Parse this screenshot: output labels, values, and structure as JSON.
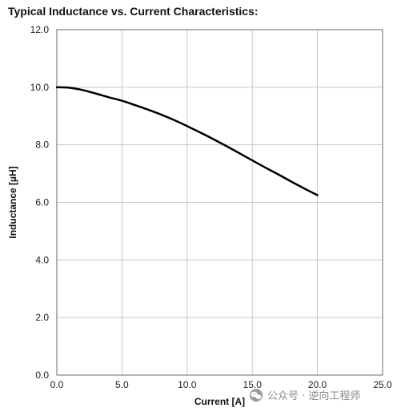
{
  "chart_data": {
    "type": "line",
    "title": "Typical Inductance vs. Current Characteristics:",
    "xlabel": "Current [A]",
    "ylabel": "Inductance [µH]",
    "xlim": [
      0,
      25
    ],
    "ylim": [
      0,
      12
    ],
    "x_ticks": [
      "0.0",
      "5.0",
      "10.0",
      "15.0",
      "20.0",
      "25.0"
    ],
    "y_ticks": [
      "0.0",
      "2.0",
      "4.0",
      "6.0",
      "8.0",
      "10.0",
      "12.0"
    ],
    "grid": true,
    "series": [
      {
        "color": "#000000",
        "x": [
          0,
          1,
          2,
          3,
          4,
          5,
          6,
          7,
          8,
          9,
          10,
          11,
          12,
          13,
          14,
          15,
          16,
          17,
          18,
          19,
          20
        ],
        "y": [
          10.0,
          9.98,
          9.9,
          9.78,
          9.65,
          9.53,
          9.38,
          9.22,
          9.05,
          8.86,
          8.65,
          8.43,
          8.2,
          7.96,
          7.71,
          7.46,
          7.21,
          6.97,
          6.72,
          6.48,
          6.25
        ]
      }
    ]
  },
  "watermark": {
    "text": "公众号 · 逆向工程师",
    "icon": "wechat-icon"
  }
}
